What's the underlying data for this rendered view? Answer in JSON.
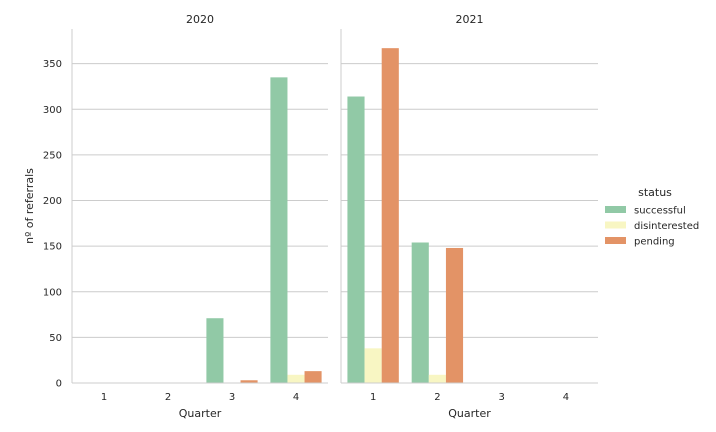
{
  "chart_data": {
    "type": "bar",
    "facet_variable": "year",
    "panels": [
      {
        "title": "2020",
        "categories": [
          "1",
          "2",
          "3",
          "4"
        ],
        "series": [
          {
            "name": "successful",
            "values": [
              0,
              0,
              71,
              335
            ]
          },
          {
            "name": "disinterested",
            "values": [
              0,
              0,
              0,
              9
            ]
          },
          {
            "name": "pending",
            "values": [
              0,
              0,
              3,
              13
            ]
          }
        ]
      },
      {
        "title": "2021",
        "categories": [
          "1",
          "2",
          "3",
          "4"
        ],
        "series": [
          {
            "name": "successful",
            "values": [
              314,
              154,
              0,
              0
            ]
          },
          {
            "name": "disinterested",
            "values": [
              38,
              9,
              0,
              0
            ]
          },
          {
            "name": "pending",
            "values": [
              367,
              148,
              0,
              0
            ]
          }
        ]
      }
    ],
    "xlabel": "Quarter",
    "ylabel": "nº of referrals",
    "ylim": [
      0,
      388
    ],
    "yticks": [
      0,
      50,
      100,
      150,
      200,
      250,
      300,
      350
    ],
    "grid": true,
    "legend": {
      "title": "status",
      "position": "right",
      "entries": [
        "successful",
        "disinterested",
        "pending"
      ]
    },
    "colors": {
      "successful": "#91c9a6",
      "disinterested": "#f8f6c3",
      "pending": "#e39366"
    }
  }
}
